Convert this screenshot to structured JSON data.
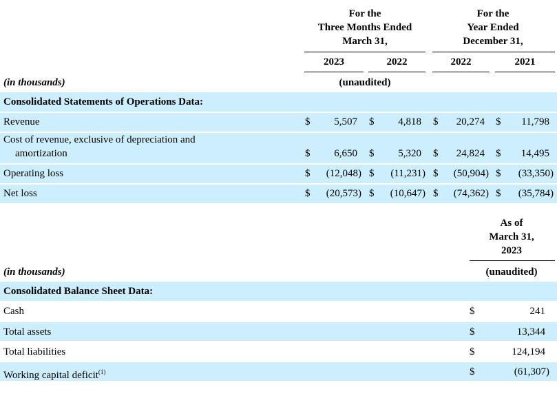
{
  "operations": {
    "header": {
      "groups": [
        [
          "For the",
          "Three Months Ended",
          "March 31,"
        ],
        [
          "For the",
          "Year Ended",
          "December 31,"
        ]
      ],
      "years": [
        "2023",
        "2022",
        "2022",
        "2021"
      ],
      "units": "(in thousands)",
      "audit": "(unaudited)"
    },
    "section": "Consolidated Statements of Operations Data:",
    "currency": "$",
    "rows": [
      {
        "label": [
          "Revenue"
        ],
        "values": [
          "5,507",
          "4,818",
          "20,274",
          "11,798"
        ]
      },
      {
        "label": [
          "Cost of revenue, exclusive of depreciation and",
          "amortization"
        ],
        "values": [
          "6,650",
          "5,320",
          "24,824",
          "14,495"
        ]
      },
      {
        "label": [
          "Operating loss"
        ],
        "values": [
          "(12,048)",
          "(11,231)",
          "(50,904)",
          "(33,350)"
        ]
      },
      {
        "label": [
          "Net loss"
        ],
        "values": [
          "(20,573)",
          "(10,647)",
          "(74,362)",
          "(35,784)"
        ]
      }
    ]
  },
  "balance": {
    "header": {
      "group": [
        "As of",
        "March 31,",
        "2023"
      ],
      "units": "(in thousands)",
      "audit": "(unaudited)"
    },
    "section": "Consolidated Balance Sheet Data:",
    "currency": "$",
    "rows": [
      {
        "label": "Cash",
        "value": "241"
      },
      {
        "label": "Total assets",
        "value": "13,344"
      },
      {
        "label": "Total liabilities",
        "value": "124,194"
      },
      {
        "label": "Working capital deficit",
        "footnote": "(1)",
        "value": "(61,307)"
      }
    ]
  }
}
